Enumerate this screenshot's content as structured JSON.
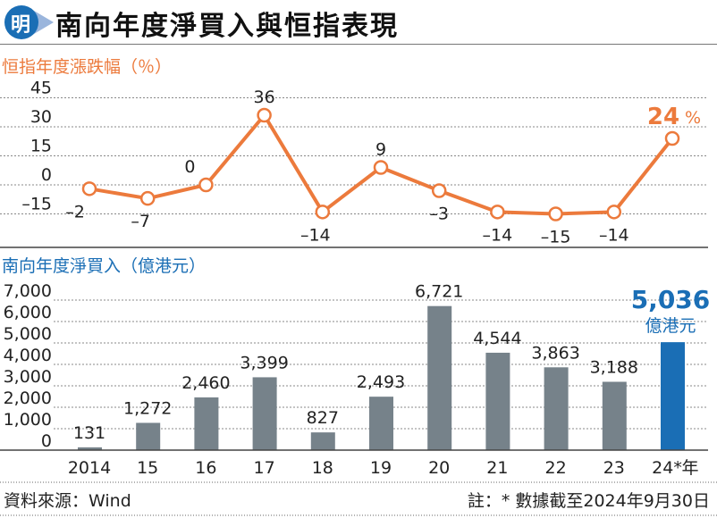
{
  "header": {
    "logo_text": "明",
    "title": "南向年度淨買入與恒指表現"
  },
  "colors": {
    "orange": "#ec7a3c",
    "gray_bar": "#76828a",
    "blue": "#1a6eb5",
    "logo_blue": "#1a6eb5"
  },
  "chart_data": [
    {
      "type": "line",
      "title": "恒指年度漲跌幅（％）",
      "categories": [
        "2014",
        "15",
        "16",
        "17",
        "18",
        "19",
        "20",
        "21",
        "22",
        "23",
        "24*"
      ],
      "values": [
        -2,
        -7,
        0,
        36,
        -14,
        9,
        -3,
        -14,
        -15,
        -14,
        24
      ],
      "data_labels": [
        "–2",
        "–7",
        "0",
        "36",
        "–14",
        "9",
        "–3",
        "–14",
        "–15",
        "–14",
        "24"
      ],
      "last_label_unit": "%",
      "yticks": [
        45,
        30,
        15,
        0,
        -15
      ],
      "ytick_labels": [
        "45",
        "30",
        "15",
        "0",
        "–15"
      ],
      "ylim": [
        -30,
        50
      ],
      "grid": true
    },
    {
      "type": "bar",
      "title": "南向年度淨買入（億港元）",
      "categories": [
        "2014",
        "15",
        "16",
        "17",
        "18",
        "19",
        "20",
        "21",
        "22",
        "23",
        "24*"
      ],
      "x_unit_label": "年",
      "values": [
        131,
        1272,
        2460,
        3399,
        827,
        2493,
        6721,
        4544,
        3863,
        3188,
        5036
      ],
      "data_labels": [
        "131",
        "1,272",
        "2,460",
        "3,399",
        "827",
        "2,493",
        "6,721",
        "4,544",
        "3,863",
        "3,188",
        "5,036"
      ],
      "highlight_unit": "億港元",
      "yticks": [
        0,
        1000,
        2000,
        3000,
        4000,
        5000,
        6000,
        7000
      ],
      "ytick_labels": [
        "0",
        "1,000",
        "2,000",
        "3,000",
        "4,000",
        "5,000",
        "6,000",
        "7,000"
      ],
      "ylim": [
        0,
        7000
      ],
      "grid": true
    }
  ],
  "footer": {
    "source": "資料來源：Wind",
    "note": "註：* 數據截至2024年9月30日"
  }
}
